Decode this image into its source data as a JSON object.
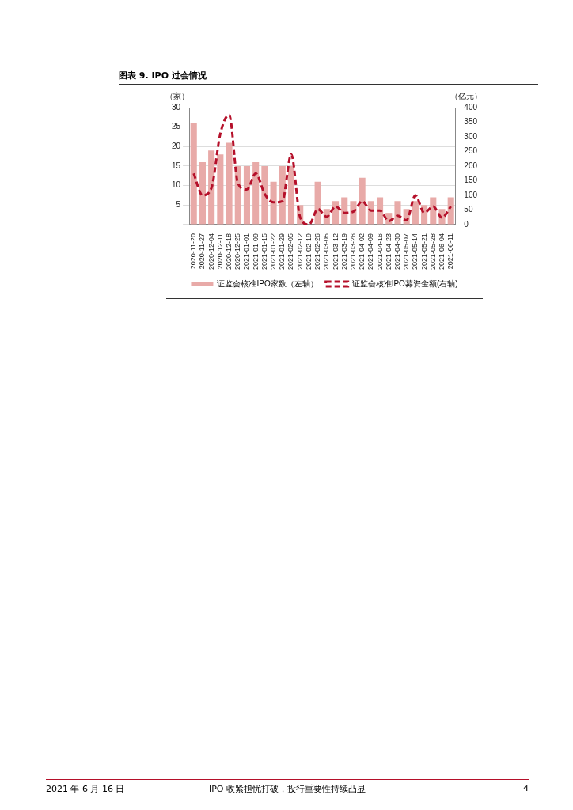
{
  "chart_data": {
    "type": "bar",
    "title": "图表 9. IPO 过会情况",
    "ylabel": "（家）",
    "y2label": "（亿元）",
    "categories": [
      "2020-11-20",
      "2020-11-27",
      "2020-12-04",
      "2020-12-11",
      "2020-12-18",
      "2020-12-25",
      "2021-01-01",
      "2021-01-09",
      "2021-01-15",
      "2021-01-22",
      "2021-01-29",
      "2021-02-05",
      "2021-02-12",
      "2021-02-19",
      "2021-02-26",
      "2021-03-05",
      "2021-03-12",
      "2021-03-19",
      "2021-03-26",
      "2021-04-02",
      "2021-04-09",
      "2021-04-16",
      "2021-04-23",
      "2021-04-30",
      "2021-05-07",
      "2021-05-14",
      "2021-05-21",
      "2021-05-28",
      "2021-06-04",
      "2021-06-11"
    ],
    "series": [
      {
        "name": "证监会核准IPO家数（左轴）",
        "color": "#e8aaa8",
        "values": [
          26,
          16,
          19,
          18,
          21,
          15,
          15,
          16,
          15,
          11,
          15,
          15,
          5,
          0,
          11,
          4,
          6,
          7,
          6,
          12,
          6,
          7,
          3,
          6,
          4,
          6,
          5,
          7,
          4,
          7
        ]
      },
      {
        "name": "证监会核准IPO募资金额(右轴)",
        "type": "line",
        "axis": "y2",
        "color": "#b5102a",
        "line_style": "dashed",
        "values": [
          175,
          100,
          125,
          310,
          375,
          140,
          120,
          175,
          105,
          76,
          80,
          240,
          25,
          0,
          53,
          27,
          62,
          40,
          44,
          80,
          48,
          48,
          12,
          30,
          15,
          100,
          40,
          62,
          24,
          62
        ]
      }
    ],
    "ylim": [
      0,
      30
    ],
    "yticks": [
      {
        "value": 0,
        "label": "-"
      },
      5,
      10,
      15,
      20,
      25,
      30
    ],
    "y2lim": [
      0,
      400
    ],
    "y2ticks": [
      0,
      50,
      100,
      150,
      200,
      250,
      300,
      350,
      400
    ],
    "grid": "y",
    "legend": "bottom",
    "marker": "none",
    "annotations": [
      "2021 年 6 月 16 日",
      "IPO 收紧担忧打破，投行重要性持续凸显",
      "4"
    ]
  }
}
